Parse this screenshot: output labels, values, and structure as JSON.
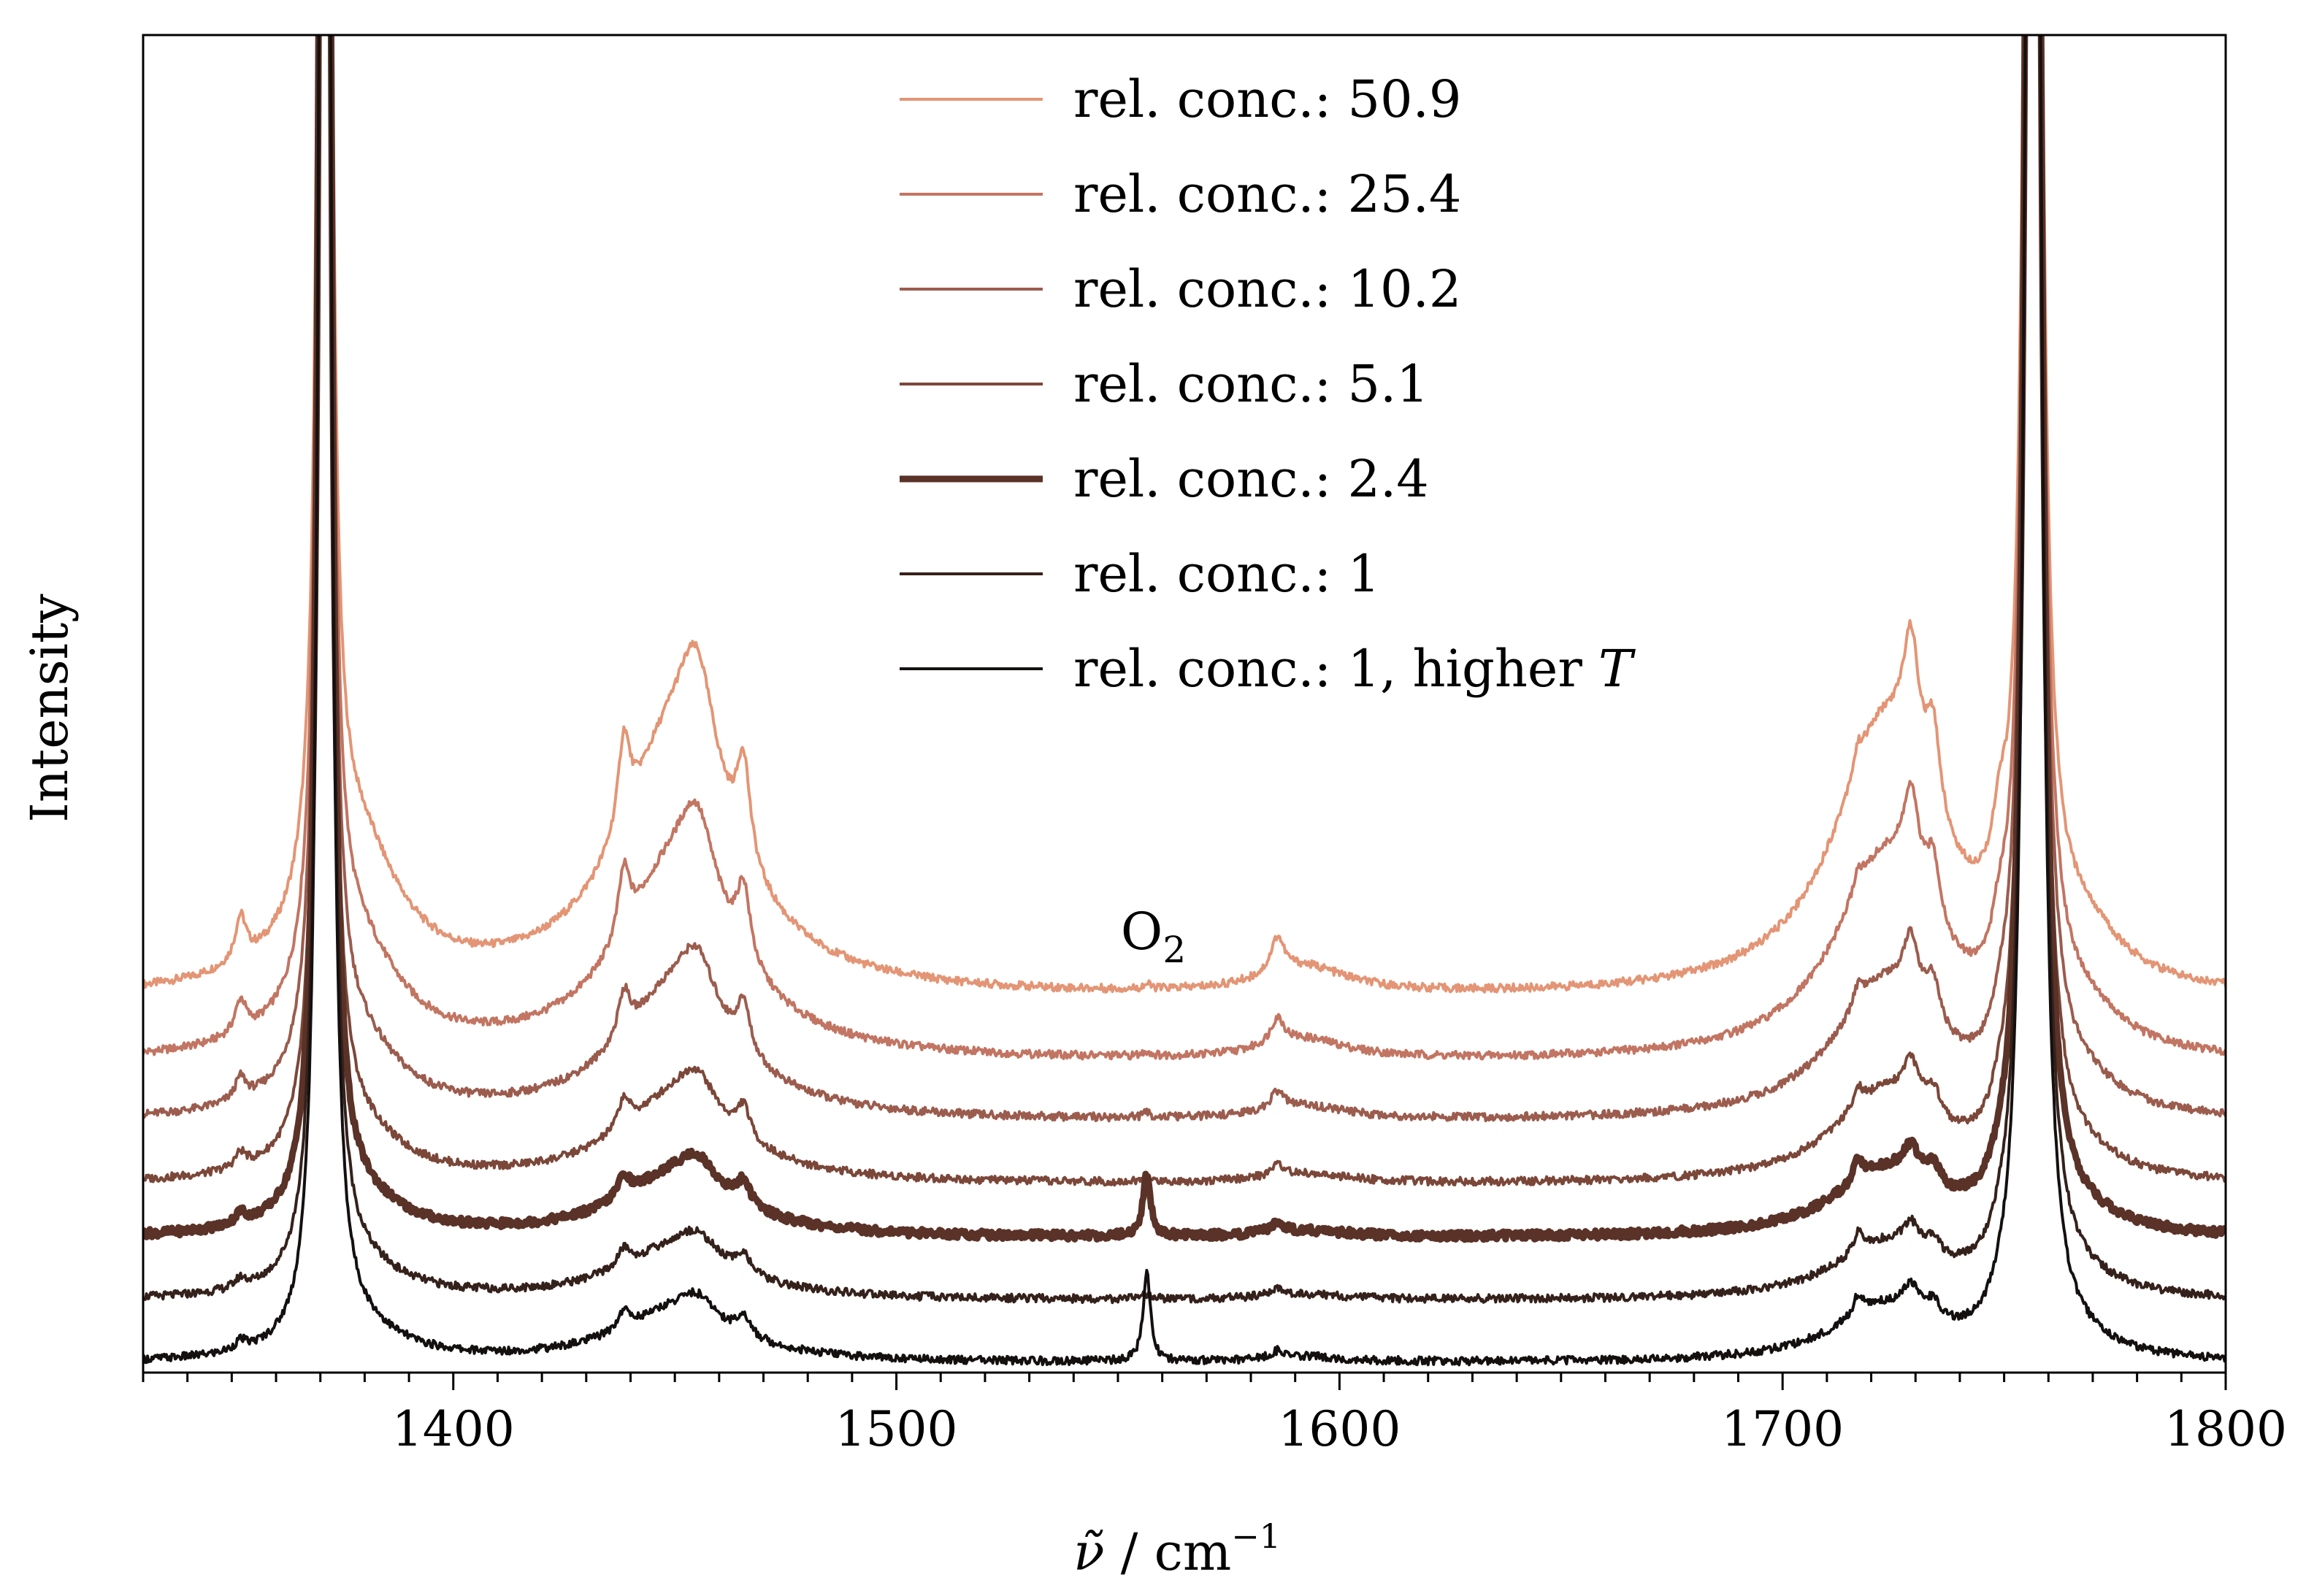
{
  "chart_data": {
    "type": "line",
    "title": "",
    "xlabel": "ν̃ / cm⁻¹",
    "xlabel_parts": {
      "symbol": "ν̃",
      "sep": " / ",
      "unit": "cm",
      "exponent": "−1"
    },
    "ylabel": "Intensity",
    "xlim": [
      1330,
      1800
    ],
    "ylim": [
      0,
      15
    ],
    "x_ticks": [
      1400,
      1500,
      1600,
      1700,
      1800
    ],
    "x_tick_labels": [
      "1400",
      "1500",
      "1600",
      "1700",
      "1800"
    ],
    "x_minor_step": 10,
    "y_ticks_visible": false,
    "grid": false,
    "legend_position": "top-center",
    "annotations": [
      {
        "text": "O",
        "subscript": "2",
        "x": 1558,
        "y": 4.75
      }
    ],
    "series": [
      {
        "name": "rel. conc.: 50.9",
        "baseline": 4.18,
        "sat": 1.0,
        "conc": 50.9,
        "color": "#e39575",
        "width": "thin"
      },
      {
        "name": "rel. conc.: 25.4",
        "baseline": 3.46,
        "sat": 0.74,
        "conc": 25.4,
        "color": "#c27562",
        "width": "thin"
      },
      {
        "name": "rel. conc.: 10.2",
        "baseline": 2.8,
        "sat": 0.5,
        "conc": 10.2,
        "color": "#9b5c4e",
        "width": "thin"
      },
      {
        "name": "rel. conc.: 5.1",
        "baseline": 2.1,
        "sat": 0.33,
        "conc": 5.1,
        "color": "#7b4739",
        "width": "thin"
      },
      {
        "name": "rel. conc.: 2.4",
        "baseline": 1.5,
        "sat": 0.24,
        "conc": 2.4,
        "color": "#5a3227",
        "width": "thick",
        "o2_peak": 0.7
      },
      {
        "name": "rel. conc.: 1",
        "baseline": 0.8,
        "sat": 0.2,
        "conc": 1,
        "color": "#35211b",
        "width": "thin"
      },
      {
        "name_parts": [
          "rel. conc.: 1, higher ",
          "T"
        ],
        "name": "rel. conc.: 1, higher T",
        "baseline": 0.1,
        "sat": 0.2,
        "conc": 1,
        "color": "#141010",
        "width": "thin",
        "o2_peak": 1.0
      }
    ]
  }
}
